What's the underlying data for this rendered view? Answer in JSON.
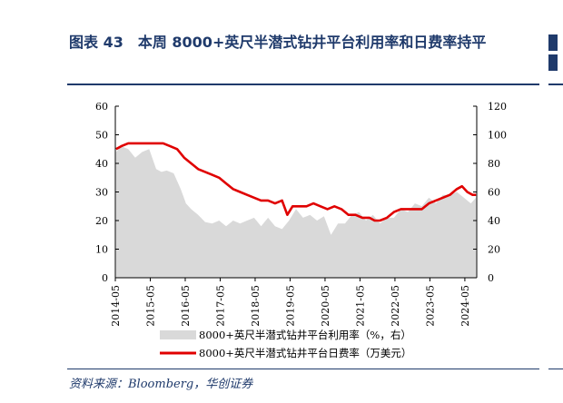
{
  "header": {
    "title": "图表 43　本周 8000+英尺半潜式钻井平台利用率和日费率持平"
  },
  "footer": {
    "source": "资料来源：Bloomberg，华创证券"
  },
  "colors": {
    "brand_navy": "#1f3a6b",
    "area_fill": "#d9d9d9",
    "line_red": "#e00000"
  },
  "chart_data": {
    "type": "area+line",
    "x_tick_labels": [
      "2014-05",
      "2015-05",
      "2016-05",
      "2017-05",
      "2018-05",
      "2019-05",
      "2020-05",
      "2021-05",
      "2022-05",
      "2023-05",
      "2024-05"
    ],
    "left_axis": {
      "ylim": [
        0,
        60
      ],
      "ticks": [
        "0",
        "10",
        "20",
        "30",
        "40",
        "50",
        "60"
      ]
    },
    "right_axis": {
      "ylim": [
        0,
        120
      ],
      "ticks": [
        "0",
        "20",
        "40",
        "60",
        "80",
        "100",
        "120"
      ]
    },
    "legend_position": "bottom",
    "series": [
      {
        "name": "8000+英尺半潜式钻井平台利用率（%，右）",
        "kind": "area",
        "axis": "right",
        "x": [
          2014.35,
          2014.5,
          2014.7,
          2014.9,
          2015.1,
          2015.3,
          2015.5,
          2015.65,
          2015.8,
          2016.0,
          2016.2,
          2016.35,
          2016.5,
          2016.7,
          2016.9,
          2017.1,
          2017.3,
          2017.5,
          2017.7,
          2017.9,
          2018.1,
          2018.3,
          2018.5,
          2018.7,
          2018.9,
          2019.1,
          2019.3,
          2019.5,
          2019.7,
          2019.9,
          2020.1,
          2020.3,
          2020.5,
          2020.7,
          2020.9,
          2021.1,
          2021.3,
          2021.5,
          2021.7,
          2021.9,
          2022.1,
          2022.3,
          2022.5,
          2022.7,
          2022.9,
          2023.1,
          2023.3,
          2023.5,
          2023.7,
          2023.9,
          2024.1,
          2024.3,
          2024.5,
          2024.65
        ],
        "values": [
          88,
          92,
          90,
          84,
          88,
          90,
          76,
          74,
          75,
          73,
          62,
          52,
          48,
          44,
          39,
          38,
          40,
          36,
          40,
          38,
          40,
          42,
          36,
          42,
          36,
          34,
          40,
          48,
          42,
          44,
          40,
          43,
          30,
          38,
          38,
          44,
          46,
          40,
          44,
          38,
          42,
          42,
          48,
          46,
          52,
          50,
          56,
          52,
          58,
          58,
          60,
          56,
          52,
          56
        ]
      },
      {
        "name": "8000+英尺半潜式钻井平台日费率（万美元）",
        "kind": "line",
        "axis": "left",
        "x": [
          2014.35,
          2014.5,
          2014.7,
          2014.9,
          2015.1,
          2015.3,
          2015.5,
          2015.7,
          2015.9,
          2016.1,
          2016.3,
          2016.5,
          2016.7,
          2016.9,
          2017.1,
          2017.3,
          2017.5,
          2017.7,
          2017.9,
          2018.1,
          2018.3,
          2018.5,
          2018.7,
          2018.9,
          2019.1,
          2019.25,
          2019.4,
          2019.6,
          2019.8,
          2020.0,
          2020.2,
          2020.4,
          2020.6,
          2020.8,
          2021.0,
          2021.2,
          2021.4,
          2021.6,
          2021.75,
          2021.9,
          2022.1,
          2022.3,
          2022.5,
          2022.7,
          2022.9,
          2023.1,
          2023.3,
          2023.5,
          2023.7,
          2023.9,
          2024.1,
          2024.25,
          2024.4,
          2024.55,
          2024.65
        ],
        "values": [
          45,
          46,
          47,
          47,
          47,
          47,
          47,
          47,
          46,
          45,
          42,
          40,
          38,
          37,
          36,
          35,
          33,
          31,
          30,
          29,
          28,
          27,
          27,
          26,
          27,
          22,
          25,
          25,
          25,
          26,
          25,
          24,
          25,
          24,
          22,
          22,
          21,
          21,
          20,
          20,
          21,
          23,
          24,
          24,
          24,
          24,
          26,
          27,
          28,
          29,
          31,
          32,
          30,
          29,
          29
        ]
      }
    ]
  }
}
